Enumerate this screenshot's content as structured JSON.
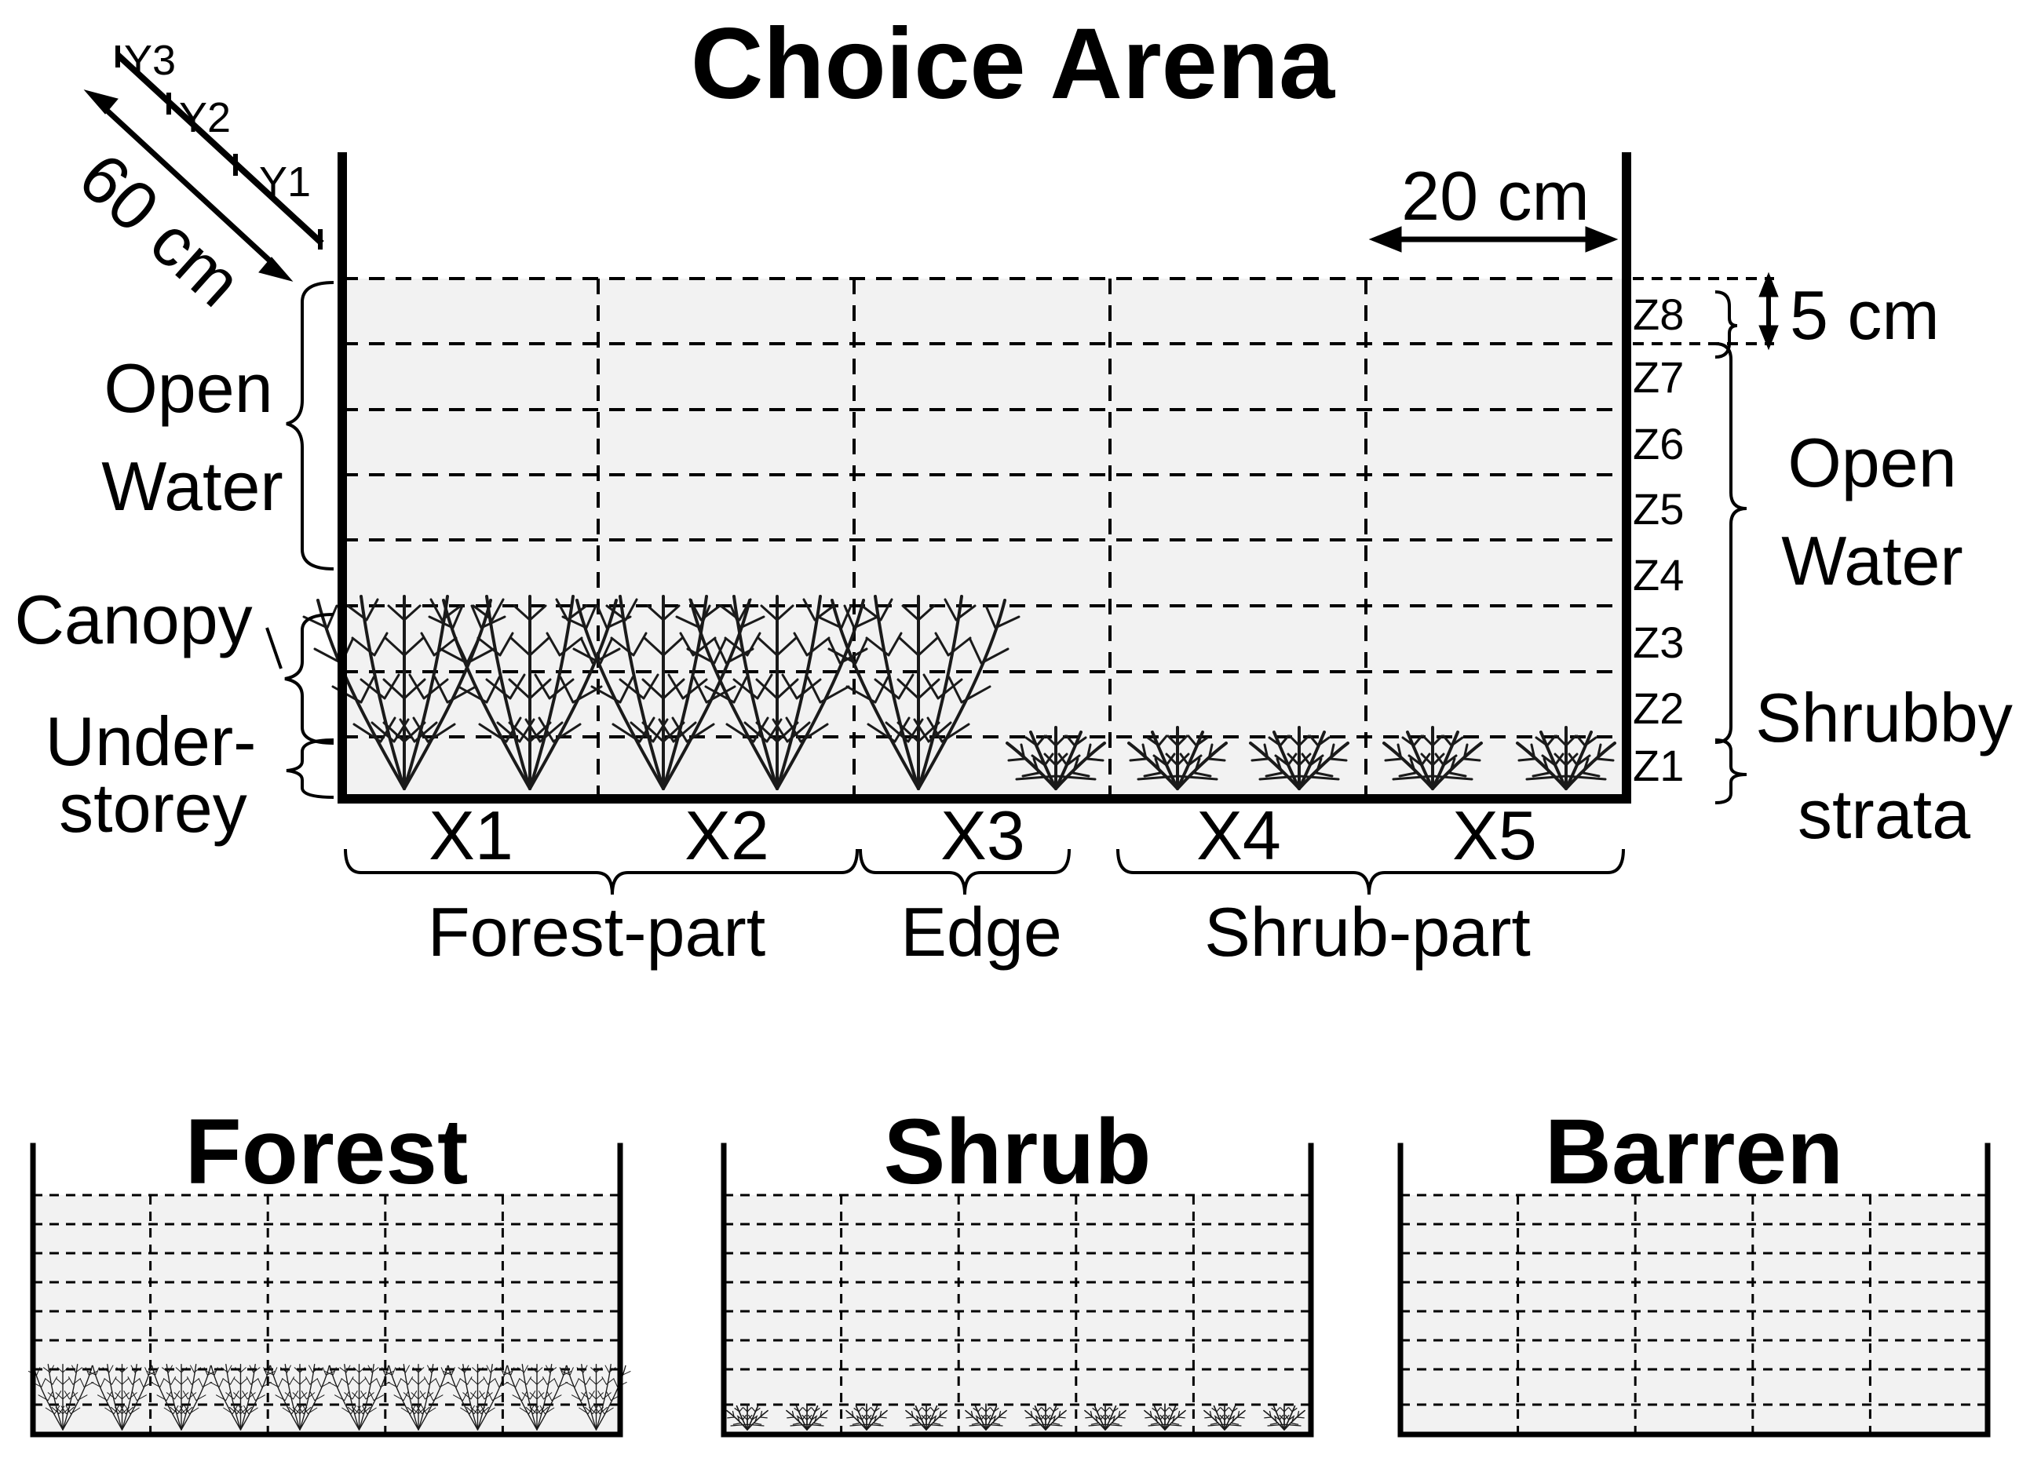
{
  "choice_arena": {
    "title": "Choice Arena",
    "depth_label": "60 cm",
    "y_labels": [
      "Y1",
      "Y2",
      "Y3"
    ],
    "cell_width_label": "20 cm",
    "layer_height_label": "5 cm",
    "z_labels": [
      "Z1",
      "Z2",
      "Z3",
      "Z4",
      "Z5",
      "Z6",
      "Z7",
      "Z8"
    ],
    "x_labels": [
      "X1",
      "X2",
      "X3",
      "X4",
      "X5"
    ],
    "sections": [
      "Forest-part",
      "Edge",
      "Shrub-part"
    ],
    "left_strata": {
      "open_water": [
        "Open",
        "Water"
      ],
      "canopy": "Canopy",
      "understorey": [
        "Under-",
        "storey"
      ]
    },
    "right_strata": {
      "open_water": [
        "Open",
        "Water"
      ],
      "shrubby": [
        "Shrubby",
        "strata"
      ]
    }
  },
  "treatments": [
    {
      "title": "Forest",
      "vegetation": "forest"
    },
    {
      "title": "Shrub",
      "vegetation": "shrub"
    },
    {
      "title": "Barren",
      "vegetation": "none"
    }
  ],
  "colors": {
    "water": "#f2f2f2",
    "plant": "#1a1a1a",
    "line": "#000000"
  }
}
